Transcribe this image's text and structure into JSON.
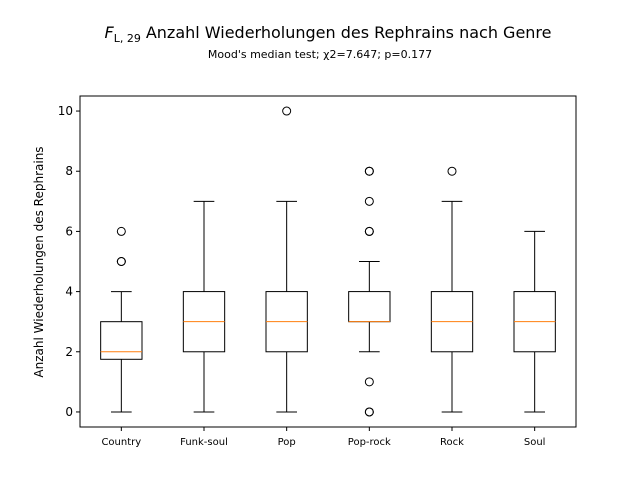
{
  "chart_data": {
    "type": "box",
    "title_prefix": "F",
    "title_subscript": "L, 29",
    "title": "Anzahl Wiederholungen des Rephrains nach Genre",
    "subtitle": "Mood's median test; χ2=7.647; p=0.177",
    "xlabel": "",
    "ylabel": "Anzahl Wiederholungen des Rephrains",
    "ylim": [
      -0.5,
      10.5
    ],
    "yticks": [
      0,
      2,
      4,
      6,
      8,
      10
    ],
    "grid": false,
    "colors": {
      "box": "#000000",
      "median": "#ff7f0e",
      "background": "#ffffff"
    },
    "categories": [
      "Country",
      "Funk-soul",
      "Pop",
      "Pop-rock",
      "Rock",
      "Soul"
    ],
    "boxes": [
      {
        "category": "Country",
        "whislo": 0,
        "q1": 1.75,
        "med": 2,
        "q3": 3,
        "whishi": 4,
        "fliers": [
          5,
          5,
          6
        ]
      },
      {
        "category": "Funk-soul",
        "whislo": 0,
        "q1": 2,
        "med": 3,
        "q3": 4,
        "whishi": 7,
        "fliers": []
      },
      {
        "category": "Pop",
        "whislo": 0,
        "q1": 2,
        "med": 3,
        "q3": 4,
        "whishi": 7,
        "fliers": [
          10
        ]
      },
      {
        "category": "Pop-rock",
        "whislo": 2,
        "q1": 3,
        "med": 3,
        "q3": 4,
        "whishi": 5,
        "fliers": [
          0,
          0,
          1,
          6,
          6,
          7,
          8,
          8
        ]
      },
      {
        "category": "Rock",
        "whislo": 0,
        "q1": 2,
        "med": 3,
        "q3": 4,
        "whishi": 7,
        "fliers": [
          8
        ]
      },
      {
        "category": "Soul",
        "whislo": 0,
        "q1": 2,
        "med": 3,
        "q3": 4,
        "whishi": 6,
        "fliers": []
      }
    ]
  }
}
